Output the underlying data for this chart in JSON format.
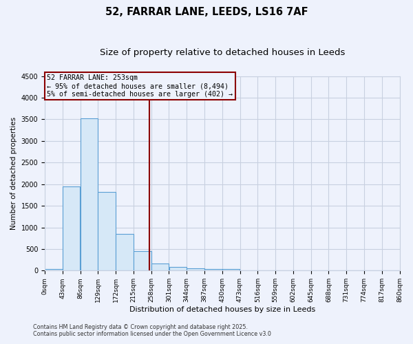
{
  "title1": "52, FARRAR LANE, LEEDS, LS16 7AF",
  "title2": "Size of property relative to detached houses in Leeds",
  "xlabel": "Distribution of detached houses by size in Leeds",
  "ylabel": "Number of detached properties",
  "bin_edges": [
    0,
    43,
    86,
    129,
    172,
    215,
    258,
    301,
    344,
    387,
    430,
    473,
    516,
    559,
    602,
    645,
    688,
    731,
    774,
    817,
    860
  ],
  "bar_heights": [
    30,
    1950,
    3520,
    1820,
    850,
    450,
    160,
    80,
    50,
    40,
    40,
    0,
    0,
    0,
    0,
    0,
    0,
    0,
    0,
    0
  ],
  "bar_color": "#d6e8f7",
  "bar_edge_color": "#5a9fd4",
  "property_line_x": 253,
  "property_line_color": "#8b0000",
  "ylim": [
    0,
    4500
  ],
  "annotation_line1": "52 FARRAR LANE: 253sqm",
  "annotation_line2": "← 95% of detached houses are smaller (8,494)",
  "annotation_line3": "5% of semi-detached houses are larger (402) →",
  "annotation_box_color": "#8b0000",
  "background_color": "#eef2fc",
  "plot_bg_color": "#eef2fc",
  "grid_color": "#c8d0e0",
  "footnote1": "Contains HM Land Registry data © Crown copyright and database right 2025.",
  "footnote2": "Contains public sector information licensed under the Open Government Licence v3.0",
  "title1_fontsize": 10.5,
  "title2_fontsize": 9.5,
  "tick_labels": [
    "0sqm",
    "43sqm",
    "86sqm",
    "129sqm",
    "172sqm",
    "215sqm",
    "258sqm",
    "301sqm",
    "344sqm",
    "387sqm",
    "430sqm",
    "473sqm",
    "516sqm",
    "559sqm",
    "602sqm",
    "645sqm",
    "688sqm",
    "731sqm",
    "774sqm",
    "817sqm",
    "860sqm"
  ]
}
